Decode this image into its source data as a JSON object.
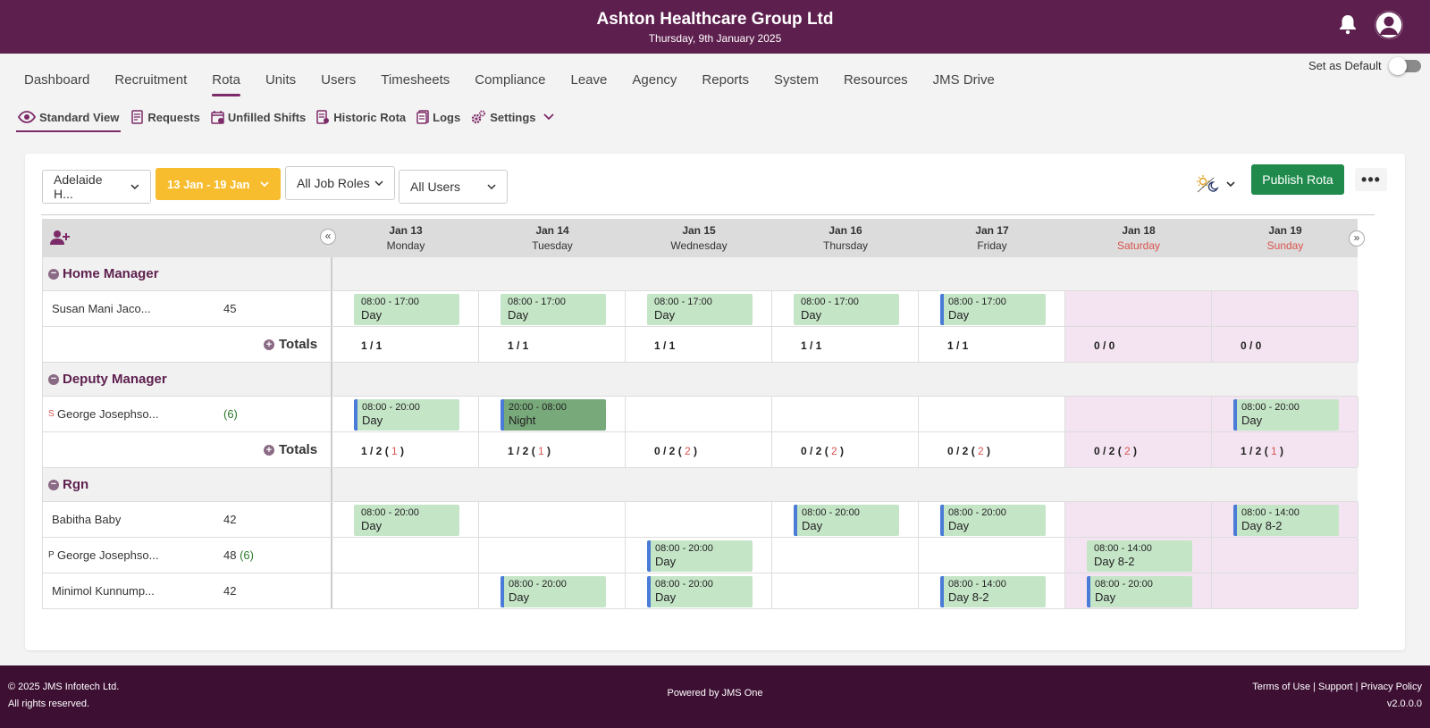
{
  "header": {
    "company": "Ashton Healthcare Group Ltd",
    "date": "Thursday, 9th January 2025"
  },
  "nav": {
    "items": [
      "Dashboard",
      "Recruitment",
      "Rota",
      "Units",
      "Users",
      "Timesheets",
      "Compliance",
      "Leave",
      "Agency",
      "Reports",
      "System",
      "Resources",
      "JMS Drive"
    ],
    "active": "Rota",
    "set_default_label": "Set as Default"
  },
  "subnav": {
    "items": [
      "Standard View",
      "Requests",
      "Unfilled Shifts",
      "Historic Rota",
      "Logs",
      "Settings"
    ],
    "active": "Standard View"
  },
  "filters": {
    "unit": "Adelaide H...",
    "date_range": "13 Jan - 19 Jan",
    "job_roles": "All Job Roles",
    "users": "All Users"
  },
  "actions": {
    "publish": "Publish Rota",
    "more": "•••"
  },
  "days": [
    {
      "date": "Jan 13",
      "weekday": "Monday",
      "weekend": false
    },
    {
      "date": "Jan 14",
      "weekday": "Tuesday",
      "weekend": false
    },
    {
      "date": "Jan 15",
      "weekday": "Wednesday",
      "weekend": false
    },
    {
      "date": "Jan 16",
      "weekday": "Thursday",
      "weekend": false
    },
    {
      "date": "Jan 17",
      "weekday": "Friday",
      "weekend": false
    },
    {
      "date": "Jan 18",
      "weekday": "Saturday",
      "weekend": true
    },
    {
      "date": "Jan 19",
      "weekday": "Sunday",
      "weekend": true
    }
  ],
  "groups": [
    {
      "name": "Home Manager",
      "employees": [
        {
          "prefix": "",
          "name": "Susan Mani Jaco...",
          "hours": "45",
          "extra": "",
          "shifts": [
            {
              "time": "08:00 - 17:00",
              "name": "Day",
              "marked": false
            },
            {
              "time": "08:00 - 17:00",
              "name": "Day",
              "marked": false
            },
            {
              "time": "08:00 - 17:00",
              "name": "Day",
              "marked": false
            },
            {
              "time": "08:00 - 17:00",
              "name": "Day",
              "marked": false
            },
            {
              "time": "08:00 - 17:00",
              "name": "Day",
              "marked": true
            },
            null,
            null
          ]
        }
      ],
      "totals": [
        {
          "main": "1 / 1",
          "red": ""
        },
        {
          "main": "1 / 1",
          "red": ""
        },
        {
          "main": "1 / 1",
          "red": ""
        },
        {
          "main": "1 / 1",
          "red": ""
        },
        {
          "main": "1 / 1",
          "red": ""
        },
        {
          "main": "0 / 0",
          "red": ""
        },
        {
          "main": "0 / 0",
          "red": ""
        }
      ]
    },
    {
      "name": "Deputy Manager",
      "employees": [
        {
          "prefix": "S",
          "name": "George Josephso...",
          "hours": "",
          "extra": "(6)",
          "shifts": [
            {
              "time": "08:00 - 20:00",
              "name": "Day",
              "marked": true
            },
            {
              "time": "20:00 - 08:00",
              "name": "Night",
              "marked": true,
              "night": true
            },
            null,
            null,
            null,
            null,
            {
              "time": "08:00 - 20:00",
              "name": "Day",
              "marked": true
            }
          ]
        }
      ],
      "totals": [
        {
          "main": "1 / 2",
          "red": "1"
        },
        {
          "main": "1 / 2",
          "red": "1"
        },
        {
          "main": "0 / 2",
          "red": "2"
        },
        {
          "main": "0 / 2",
          "red": "2"
        },
        {
          "main": "0 / 2",
          "red": "2"
        },
        {
          "main": "0 / 2",
          "red": "2"
        },
        {
          "main": "1 / 2",
          "red": "1"
        }
      ]
    },
    {
      "name": "Rgn",
      "employees": [
        {
          "prefix": "",
          "name": "Babitha Baby",
          "hours": "42",
          "extra": "",
          "shifts": [
            {
              "time": "08:00 - 20:00",
              "name": "Day",
              "marked": false
            },
            null,
            null,
            {
              "time": "08:00 - 20:00",
              "name": "Day",
              "marked": true
            },
            {
              "time": "08:00 - 20:00",
              "name": "Day",
              "marked": true
            },
            null,
            {
              "time": "08:00 - 14:00",
              "name": "Day 8-2",
              "marked": true
            }
          ]
        },
        {
          "prefix": "P",
          "name": "George Josephso...",
          "hours": "48",
          "extra": "(6)",
          "shifts": [
            null,
            null,
            {
              "time": "08:00 - 20:00",
              "name": "Day",
              "marked": true
            },
            null,
            null,
            {
              "time": "08:00 - 14:00",
              "name": "Day 8-2",
              "marked": false
            },
            null
          ]
        },
        {
          "prefix": "",
          "name": "Minimol Kunnump...",
          "hours": "42",
          "extra": "",
          "shifts": [
            null,
            {
              "time": "08:00 - 20:00",
              "name": "Day",
              "marked": true
            },
            {
              "time": "08:00 - 20:00",
              "name": "Day",
              "marked": true
            },
            null,
            {
              "time": "08:00 - 14:00",
              "name": "Day 8-2",
              "marked": true
            },
            {
              "time": "08:00 - 20:00",
              "name": "Day",
              "marked": true
            },
            null
          ]
        }
      ]
    }
  ],
  "totals_label": "Totals",
  "footer": {
    "copyright": "© 2025 JMS Infotech Ltd.",
    "rights": "All rights reserved.",
    "powered": "Powered by JMS One",
    "links": "Terms of Use | Support | Privacy Policy",
    "version": "v2.0.0.0"
  },
  "colors": {
    "brand": "#5d1f4e",
    "publish": "#1f8a4c",
    "date_filter": "#f7bd2e",
    "shift": "#c5e5c7",
    "night_shift": "#78a97b",
    "weekend": "#f4e4f1"
  }
}
